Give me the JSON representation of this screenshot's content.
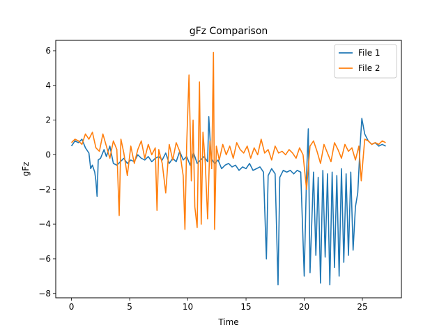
{
  "chart_data": {
    "type": "line",
    "title": "gFz Comparison",
    "xlabel": "Time",
    "ylabel": "gFz",
    "xlim": [
      -1.35,
      28.35
    ],
    "ylim": [
      -8.25,
      6.6
    ],
    "xticks": [
      0,
      5,
      10,
      15,
      20,
      25
    ],
    "yticks": [
      -8,
      -6,
      -4,
      -2,
      0,
      2,
      4,
      6
    ],
    "grid": false,
    "legend_position": "top-right",
    "series": [
      {
        "name": "File 1",
        "color": "#1f77b4",
        "x": [
          0.0,
          0.3,
          0.6,
          0.9,
          1.2,
          1.5,
          1.65,
          1.8,
          2.0,
          2.1,
          2.2,
          2.3,
          2.5,
          2.8,
          3.0,
          3.3,
          3.6,
          3.9,
          4.2,
          4.5,
          4.8,
          5.1,
          5.4,
          5.7,
          6.0,
          6.3,
          6.6,
          6.9,
          7.2,
          7.5,
          7.8,
          8.1,
          8.4,
          8.7,
          9.0,
          9.3,
          9.6,
          9.9,
          10.2,
          10.5,
          10.8,
          11.1,
          11.4,
          11.7,
          11.8,
          12.0,
          12.3,
          12.6,
          12.9,
          13.2,
          13.5,
          13.8,
          14.1,
          14.4,
          14.7,
          15.0,
          15.3,
          15.6,
          15.9,
          16.2,
          16.5,
          16.75,
          16.9,
          17.2,
          17.5,
          17.75,
          17.9,
          18.2,
          18.5,
          18.8,
          19.1,
          19.4,
          19.7,
          20.0,
          20.2,
          20.35,
          20.5,
          20.8,
          21.0,
          21.2,
          21.4,
          21.6,
          21.8,
          22.0,
          22.2,
          22.4,
          22.6,
          22.8,
          23.0,
          23.2,
          23.4,
          23.6,
          23.8,
          24.0,
          24.2,
          24.4,
          24.6,
          24.8,
          24.95,
          25.2,
          25.5,
          25.8,
          26.1,
          26.4,
          26.7,
          27.0
        ],
        "values": [
          0.5,
          0.8,
          0.7,
          0.9,
          0.4,
          0.1,
          -0.8,
          -0.6,
          -1.0,
          -1.5,
          -2.4,
          -0.3,
          -0.2,
          0.3,
          -0.1,
          0.5,
          -0.5,
          -0.6,
          -0.4,
          -0.2,
          -0.5,
          -0.3,
          -0.4,
          0.0,
          -0.2,
          -0.3,
          -0.1,
          -0.4,
          -0.2,
          -0.1,
          -0.3,
          0.1,
          -0.5,
          -0.2,
          -0.4,
          0.2,
          -0.3,
          -0.1,
          -0.6,
          0.1,
          -0.5,
          -0.3,
          -0.1,
          -0.4,
          2.2,
          -0.2,
          -0.5,
          -0.3,
          -0.8,
          -0.6,
          -0.5,
          -0.7,
          -0.6,
          -0.9,
          -0.7,
          -0.8,
          -0.5,
          -0.9,
          -0.8,
          -0.7,
          -1.0,
          -6.0,
          -1.2,
          -0.8,
          -1.1,
          -7.5,
          -1.3,
          -0.9,
          -1.0,
          -0.9,
          -1.1,
          -0.9,
          -1.0,
          -7.0,
          -1.2,
          1.5,
          -6.8,
          -1.0,
          -5.8,
          -1.3,
          -7.4,
          -0.9,
          -5.9,
          -1.1,
          -7.5,
          -1.0,
          -6.5,
          -1.2,
          -7.0,
          -0.8,
          -6.2,
          -1.1,
          -5.8,
          -1.0,
          -5.5,
          -3.0,
          -2.2,
          0.5,
          2.1,
          1.2,
          0.8,
          0.6,
          0.7,
          0.5,
          0.6,
          0.5
        ]
      },
      {
        "name": "File 2",
        "color": "#ff7f0e",
        "x": [
          0.0,
          0.3,
          0.6,
          0.9,
          1.2,
          1.5,
          1.8,
          2.1,
          2.4,
          2.7,
          3.0,
          3.3,
          3.6,
          3.9,
          4.1,
          4.25,
          4.5,
          4.8,
          5.1,
          5.4,
          5.7,
          6.0,
          6.3,
          6.6,
          6.9,
          7.2,
          7.35,
          7.5,
          7.8,
          8.1,
          8.4,
          8.7,
          9.0,
          9.3,
          9.6,
          9.75,
          9.9,
          10.1,
          10.3,
          10.45,
          10.6,
          10.8,
          11.0,
          11.15,
          11.3,
          11.5,
          11.7,
          11.9,
          12.05,
          12.2,
          12.3,
          12.45,
          12.7,
          13.0,
          13.3,
          13.6,
          13.9,
          14.2,
          14.5,
          14.8,
          15.1,
          15.4,
          15.7,
          16.0,
          16.3,
          16.6,
          16.9,
          17.2,
          17.5,
          17.8,
          18.1,
          18.4,
          18.7,
          19.0,
          19.3,
          19.6,
          19.9,
          20.2,
          20.5,
          20.8,
          21.1,
          21.4,
          21.7,
          22.0,
          22.3,
          22.6,
          22.9,
          23.2,
          23.5,
          23.8,
          24.1,
          24.4,
          24.7,
          24.9,
          25.2,
          25.5,
          25.8,
          26.1,
          26.4,
          26.7,
          27.0
        ],
        "values": [
          0.7,
          0.9,
          0.8,
          0.6,
          1.2,
          0.9,
          1.3,
          0.4,
          0.2,
          1.2,
          0.5,
          -0.2,
          0.8,
          0.3,
          -3.5,
          0.9,
          0.1,
          -1.2,
          0.5,
          -0.5,
          0.3,
          0.8,
          -0.2,
          0.6,
          0.0,
          0.4,
          -3.2,
          0.3,
          -0.5,
          -2.2,
          0.6,
          -0.3,
          0.7,
          0.2,
          -1.2,
          -4.3,
          0.6,
          4.6,
          -1.5,
          2.0,
          -3.0,
          -4.2,
          4.2,
          -4.0,
          1.3,
          -0.5,
          -3.7,
          0.8,
          -0.8,
          5.9,
          -4.3,
          0.5,
          -0.3,
          0.6,
          0.0,
          0.5,
          -0.2,
          0.7,
          0.3,
          0.1,
          0.5,
          -0.2,
          0.4,
          0.0,
          0.9,
          0.1,
          0.3,
          -0.3,
          0.5,
          0.1,
          0.2,
          0.0,
          0.3,
          0.1,
          -0.2,
          0.4,
          0.0,
          -2.0,
          0.5,
          0.8,
          0.2,
          -0.5,
          0.6,
          0.1,
          -0.4,
          0.7,
          0.3,
          -0.2,
          0.6,
          0.2,
          0.4,
          -0.3,
          0.5,
          -1.5,
          0.9,
          0.8,
          0.6,
          0.7,
          0.6,
          0.8,
          0.7
        ]
      }
    ]
  }
}
